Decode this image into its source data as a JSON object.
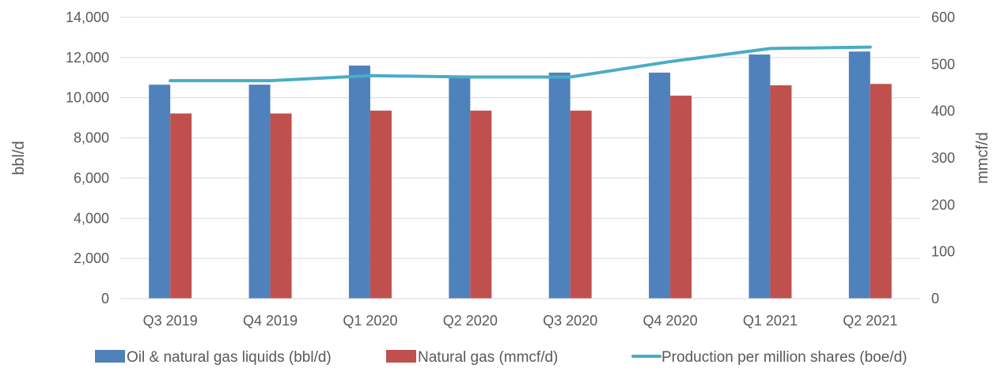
{
  "chart_data": {
    "type": "bar",
    "categories": [
      "Q3 2019",
      "Q4 2019",
      "Q1 2020",
      "Q2 2020",
      "Q3 2020",
      "Q4 2020",
      "Q1 2021",
      "Q2 2021"
    ],
    "series": [
      {
        "name": "Oil & natural gas liquids (bbl/d)",
        "type": "bar",
        "axis": "left",
        "color": "#4f81bd",
        "values": [
          10650,
          10650,
          11600,
          11000,
          11250,
          11250,
          12150,
          12300
        ]
      },
      {
        "name": "Natural gas (mmcf/d)",
        "type": "bar",
        "axis": "right",
        "color": "#c0504d",
        "values": [
          395,
          395,
          401,
          401,
          401,
          433,
          455,
          458
        ]
      },
      {
        "name": "Production per million shares (boe/d)",
        "type": "line",
        "axis": "left",
        "color": "#4bacc6",
        "values": [
          10850,
          10850,
          11100,
          11030,
          11030,
          11800,
          12450,
          12520
        ]
      }
    ],
    "ylabel": "bbl/d",
    "y2label": "mmcf/d",
    "ylim": [
      0,
      14000
    ],
    "y2lim": [
      0,
      600
    ],
    "yticks": [
      "0",
      "2,000",
      "4,000",
      "6,000",
      "8,000",
      "10,000",
      "12,000",
      "14,000"
    ],
    "y2ticks": [
      "0",
      "100",
      "200",
      "300",
      "400",
      "500",
      "600"
    ],
    "grid": true,
    "legend": "bottom"
  }
}
